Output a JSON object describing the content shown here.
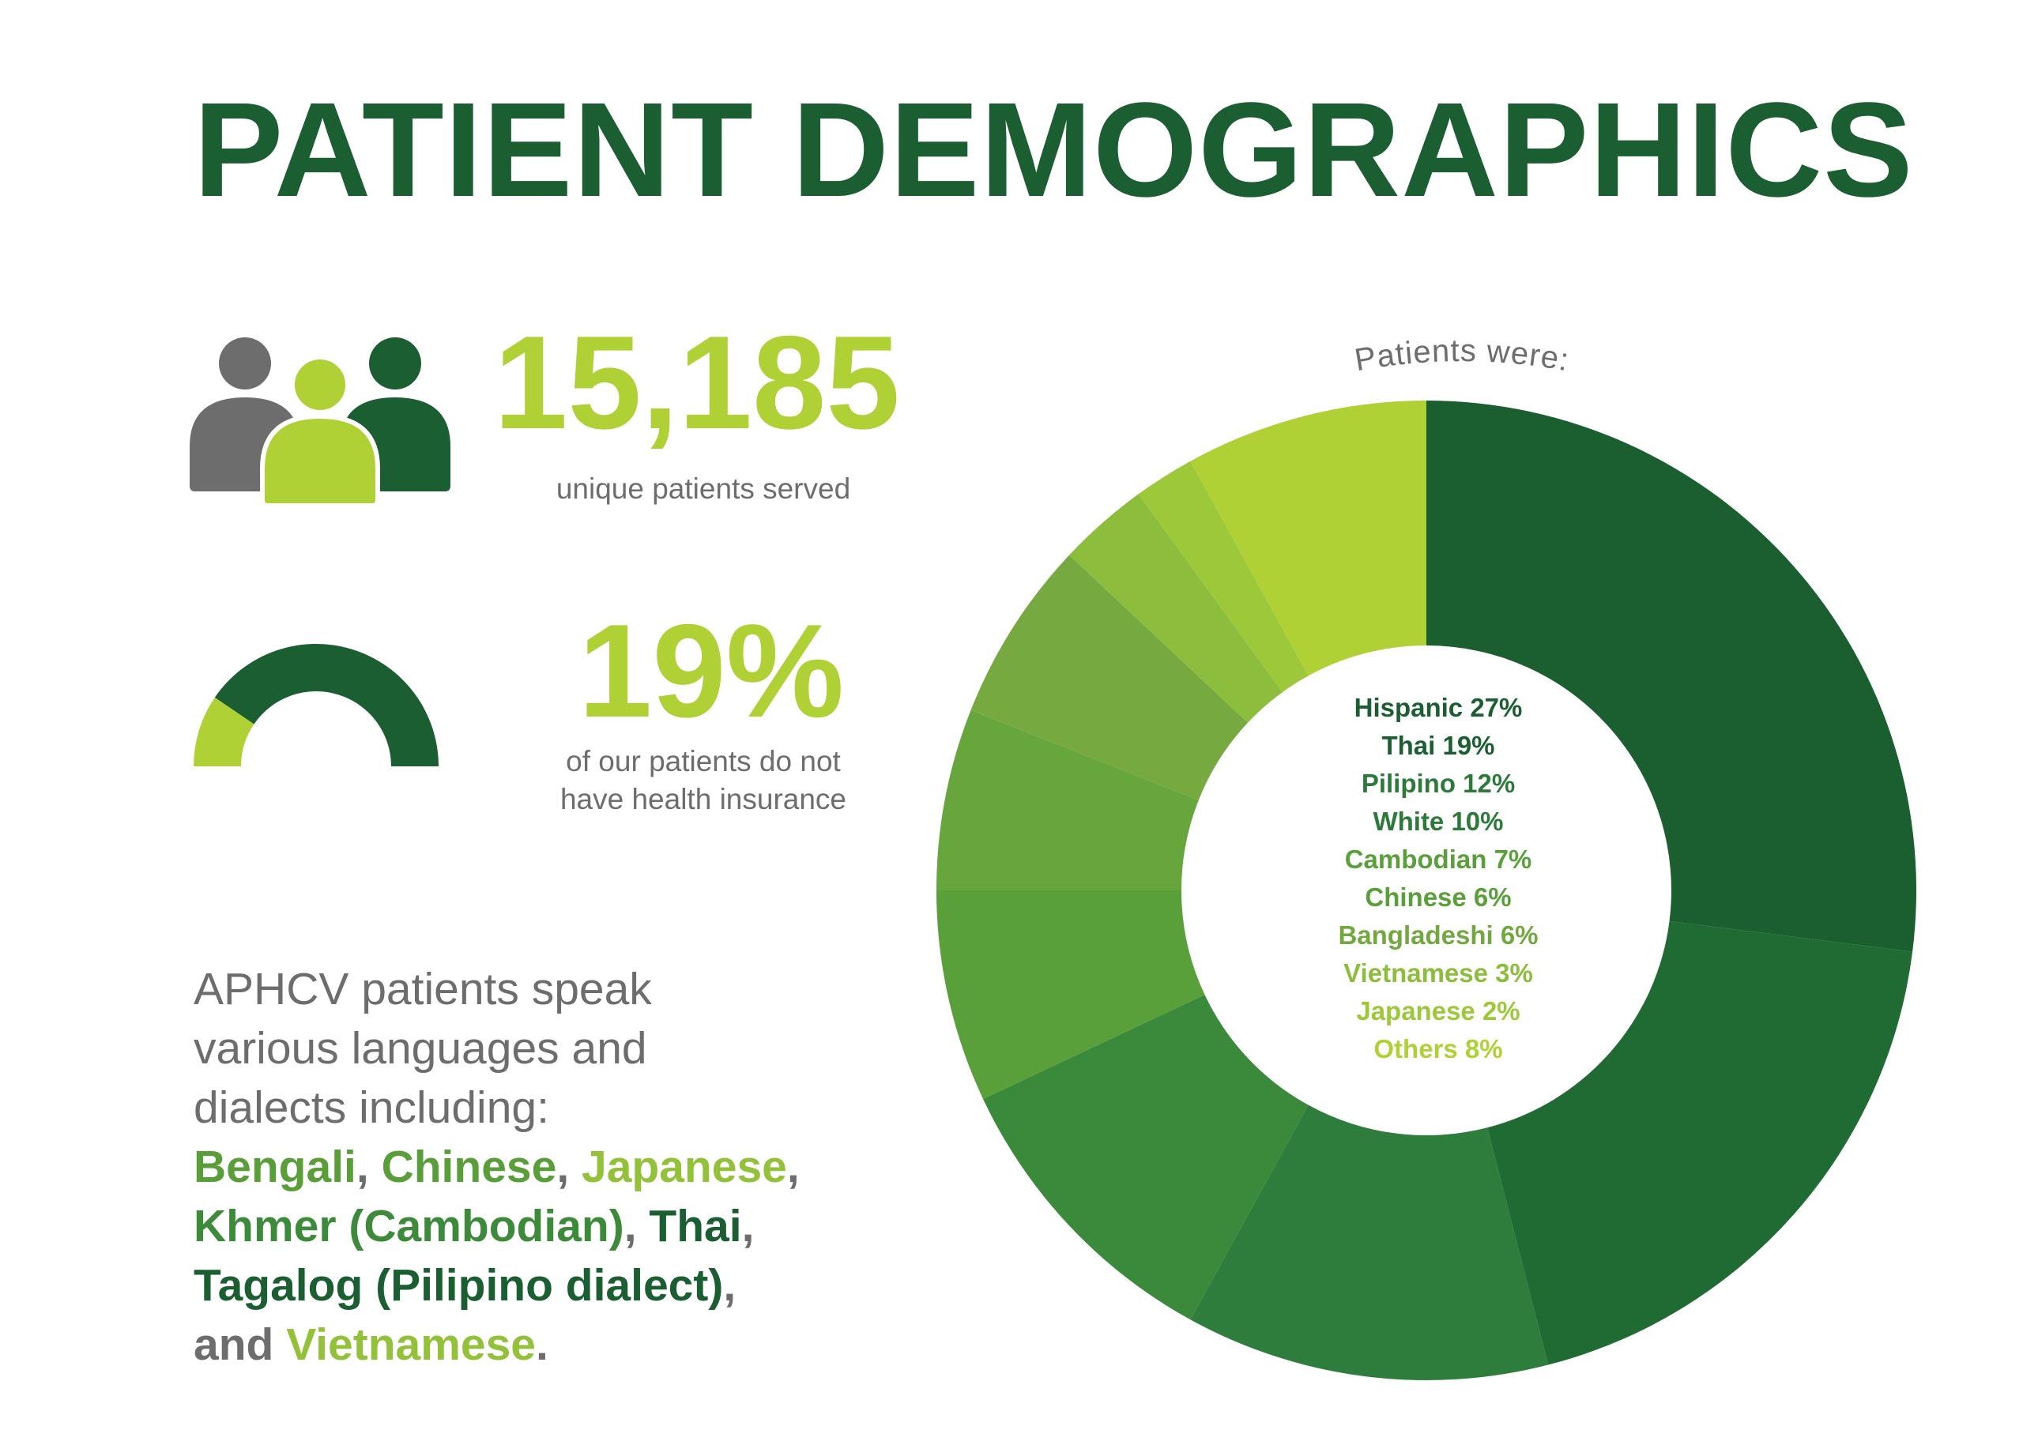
{
  "title": "PATIENT DEMOGRAPHICS",
  "colors": {
    "dark_green": "#1a5e31",
    "mid_green": "#5a9e3a",
    "light_green": "#93c13a",
    "lime": "#afd135",
    "gray": "#6d6d6d"
  },
  "icons": {
    "people": "people-group-icon",
    "gauge": "half-donut-gauge-icon"
  },
  "unique_patients": {
    "number": "15,185",
    "label": "unique patients served"
  },
  "uninsured": {
    "percent": "19%",
    "fraction": 0.19,
    "label_line1": "of our patients do not",
    "label_line2": "have health insurance"
  },
  "languages": {
    "intro_line1": "APHCV patients speak",
    "intro_line2": "various languages and",
    "intro_line3": "dialects including:",
    "items": [
      "Bengali",
      "Chinese",
      "Japanese",
      "Khmer (Cambodian)",
      "Thai",
      "Tagalog (Pilipino dialect)",
      "Vietnamese"
    ],
    "and": "and",
    "comma": ",",
    "period": "."
  },
  "chart_data": {
    "type": "pie",
    "title": "Patients were:",
    "categories": [
      "Hispanic",
      "Thai",
      "Pilipino",
      "White",
      "Cambodian",
      "Chinese",
      "Bangladeshi",
      "Vietnamese",
      "Japanese",
      "Others"
    ],
    "values": [
      27,
      19,
      12,
      10,
      7,
      6,
      6,
      3,
      2,
      8
    ],
    "labels": [
      "Hispanic 27%",
      "Thai 19%",
      "Pilipino 12%",
      "White 10%",
      "Cambodian 7%",
      "Chinese 6%",
      "Bangladeshi 6%",
      "Vietnamese 3%",
      "Japanese 2%",
      "Others 8%"
    ],
    "colors": [
      "#1b5e30",
      "#1f6b33",
      "#2e7d3c",
      "#3b8a3c",
      "#5aa03a",
      "#67a63c",
      "#76aa40",
      "#8cbd3c",
      "#9cc83a",
      "#afd135"
    ],
    "label_colors": [
      "#1a5e31",
      "#1a5e31",
      "#2c7a3a",
      "#2c7a3a",
      "#5aa03a",
      "#5aa03a",
      "#72a93e",
      "#8cbd3c",
      "#9cc83a",
      "#afd135"
    ],
    "style": "donut",
    "start": "top, clockwise"
  }
}
